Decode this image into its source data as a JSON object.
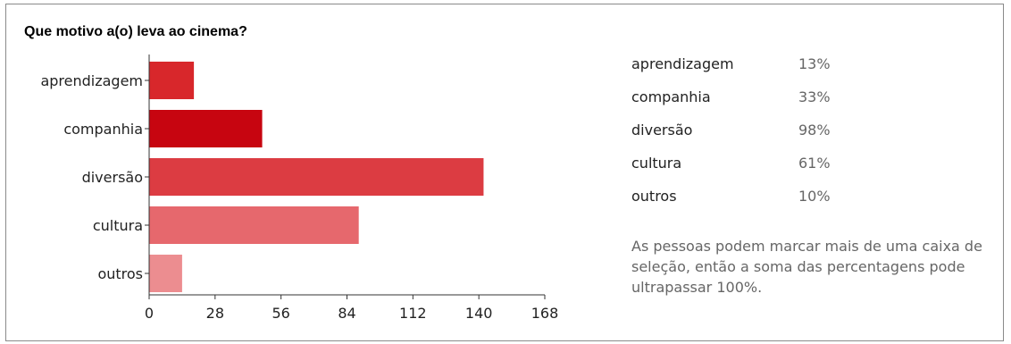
{
  "chart_data": {
    "type": "bar",
    "orientation": "horizontal",
    "title": "Que motivo a(o) leva ao cinema?",
    "categories": [
      "aprendizagem",
      "companhia",
      "diversão",
      "cultura",
      "outros"
    ],
    "values": [
      19,
      48,
      142,
      89,
      14
    ],
    "xlim": [
      0,
      168
    ],
    "xticks": [
      "0",
      "28",
      "56",
      "84",
      "112",
      "140",
      "168"
    ],
    "colors": [
      "#d8272b",
      "#c70510",
      "#dc3c42",
      "#e6686d",
      "#ec8d90"
    ],
    "grid": false,
    "legend": "none"
  },
  "stats": {
    "rows": [
      {
        "label": "aprendizagem",
        "value": "13%"
      },
      {
        "label": "companhia",
        "value": "33%"
      },
      {
        "label": "diversão",
        "value": "98%"
      },
      {
        "label": "cultura",
        "value": "61%"
      },
      {
        "label": "outros",
        "value": "10%"
      }
    ],
    "note": "As pessoas podem marcar mais de uma caixa de seleção, então a soma das percentagens pode ultrapassar 100%."
  }
}
